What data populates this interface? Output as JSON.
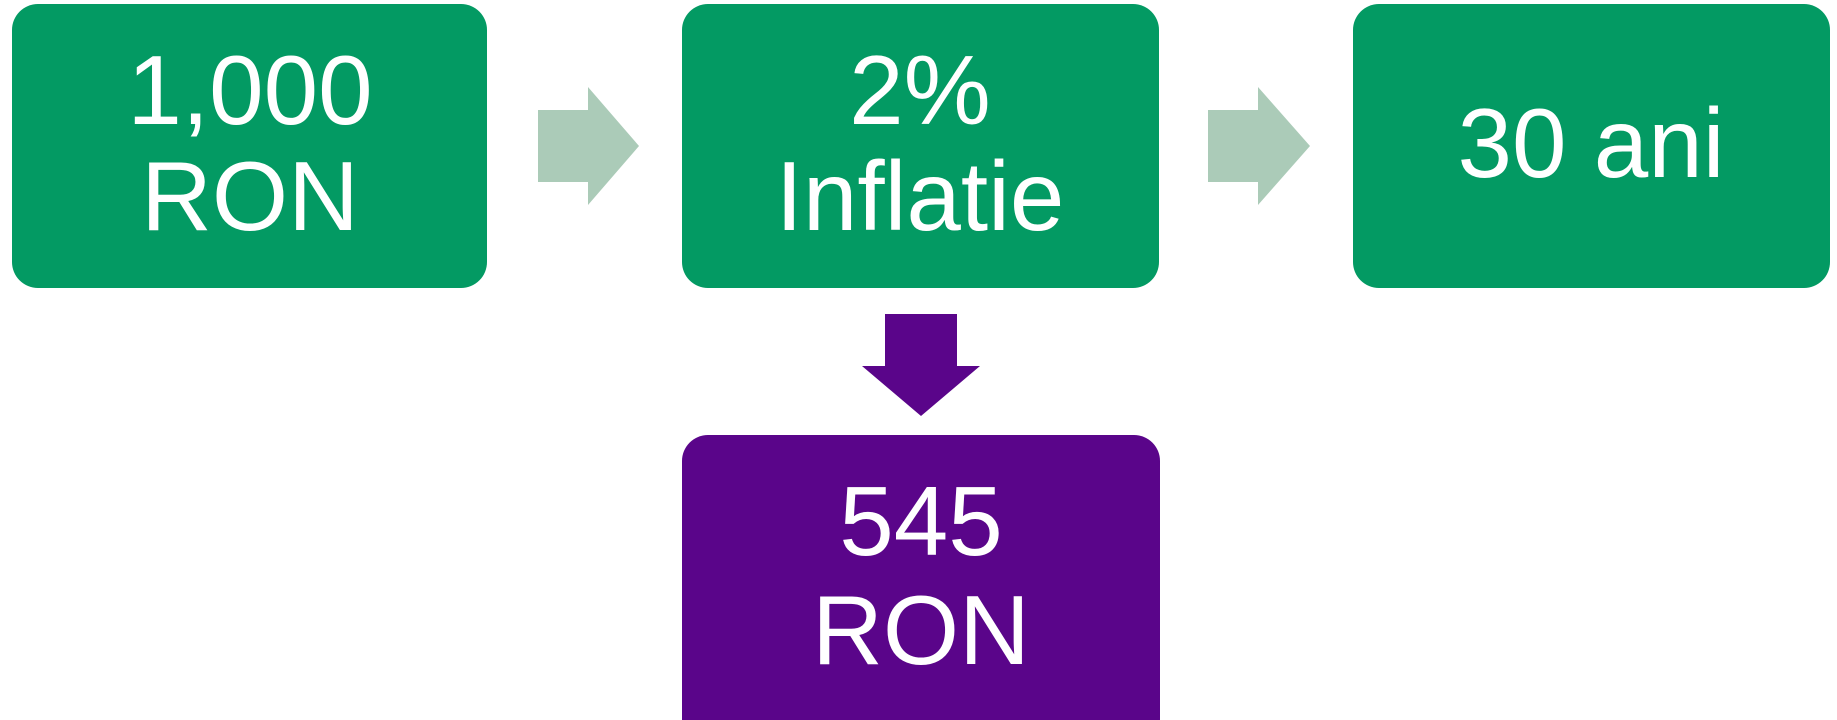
{
  "nodes": [
    {
      "lines": [
        "1,000",
        "RON"
      ]
    },
    {
      "lines": [
        "2%",
        "Inflatie"
      ]
    },
    {
      "lines": [
        "30 ani"
      ]
    },
    {
      "lines": [
        "545",
        "RON"
      ]
    }
  ]
}
